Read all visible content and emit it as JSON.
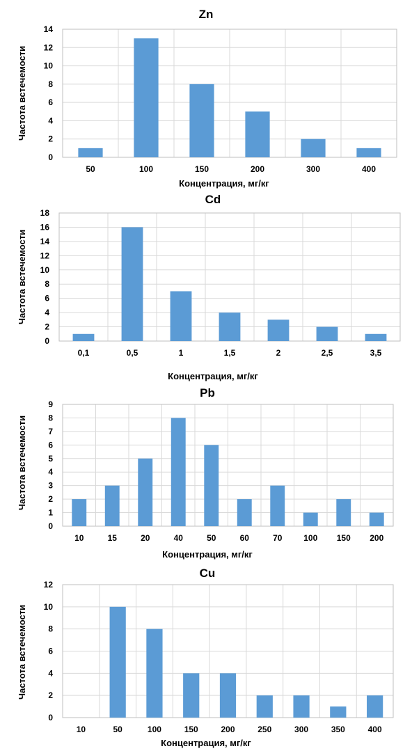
{
  "chart_data": [
    {
      "type": "bar",
      "title": "Zn",
      "xlabel": "Концентрация, мг/кг",
      "ylabel": "Частота встечемости",
      "categories": [
        "50",
        "100",
        "150",
        "200",
        "300",
        "400"
      ],
      "values": [
        1,
        13,
        8,
        5,
        2,
        1
      ],
      "ylim": [
        0,
        14
      ],
      "ytick_step": 2,
      "grid": true,
      "bar_color": "#5b9bd5"
    },
    {
      "type": "bar",
      "title": "Cd",
      "xlabel": "Концентрация, мг/кг",
      "ylabel": "Частота встечемости",
      "categories": [
        "0,1",
        "0,5",
        "1",
        "1,5",
        "2",
        "2,5",
        "3,5"
      ],
      "values": [
        1,
        16,
        7,
        4,
        3,
        2,
        1
      ],
      "ylim": [
        0,
        18
      ],
      "ytick_step": 2,
      "grid": true,
      "bar_color": "#5b9bd5"
    },
    {
      "type": "bar",
      "title": "Pb",
      "xlabel": "Концентрация, мг/кг",
      "ylabel": "Частота встечемости",
      "categories": [
        "10",
        "15",
        "20",
        "40",
        "50",
        "60",
        "70",
        "100",
        "150",
        "200"
      ],
      "values": [
        2,
        3,
        5,
        8,
        6,
        2,
        3,
        1,
        2,
        1
      ],
      "ylim": [
        0,
        9
      ],
      "ytick_step": 1,
      "grid": true,
      "bar_color": "#5b9bd5"
    },
    {
      "type": "bar",
      "title": "Cu",
      "xlabel": "Концентрация, мг/кг",
      "ylabel": "Частота встечемости",
      "categories": [
        "10",
        "50",
        "100",
        "150",
        "200",
        "250",
        "300",
        "350",
        "400"
      ],
      "values": [
        0,
        10,
        8,
        4,
        4,
        2,
        2,
        1,
        2
      ],
      "ylim": [
        0,
        12
      ],
      "ytick_step": 2,
      "grid": true,
      "bar_color": "#5b9bd5"
    }
  ]
}
